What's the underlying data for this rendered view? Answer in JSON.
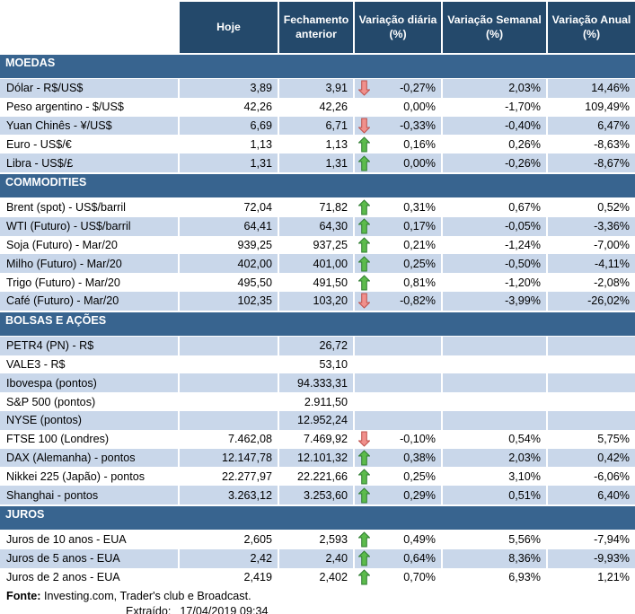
{
  "table": {
    "column_headers": [
      "",
      "Hoje",
      "Fechamento anterior",
      "Variação diária (%)",
      "Variação Semanal (%)",
      "Variação Anual (%)"
    ],
    "sections": [
      {
        "title": "MOEDAS",
        "rows": [
          {
            "label": "Dólar - R$/US$",
            "hoje": "3,89",
            "fechamento": "3,91",
            "arrow": "down",
            "diaria": "-0,27%",
            "semanal": "2,03%",
            "anual": "14,46%"
          },
          {
            "label": "Peso argentino - $/US$",
            "hoje": "42,26",
            "fechamento": "42,26",
            "arrow": null,
            "diaria": "0,00%",
            "semanal": "-1,70%",
            "anual": "109,49%"
          },
          {
            "label": "Yuan Chinês - ¥/US$",
            "hoje": "6,69",
            "fechamento": "6,71",
            "arrow": "down",
            "diaria": "-0,33%",
            "semanal": "-0,40%",
            "anual": "6,47%"
          },
          {
            "label": "Euro - US$/€",
            "hoje": "1,13",
            "fechamento": "1,13",
            "arrow": "up",
            "diaria": "0,16%",
            "semanal": "0,26%",
            "anual": "-8,63%"
          },
          {
            "label": "Libra - US$/£",
            "hoje": "1,31",
            "fechamento": "1,31",
            "arrow": "up",
            "diaria": "0,00%",
            "semanal": "-0,26%",
            "anual": "-8,67%"
          }
        ]
      },
      {
        "title": "COMMODITIES",
        "rows": [
          {
            "label": "Brent (spot) - US$/barril",
            "hoje": "72,04",
            "fechamento": "71,82",
            "arrow": "up",
            "diaria": "0,31%",
            "semanal": "0,67%",
            "anual": "0,52%"
          },
          {
            "label": "WTI (Futuro) - US$/barril",
            "hoje": "64,41",
            "fechamento": "64,30",
            "arrow": "up",
            "diaria": "0,17%",
            "semanal": "-0,05%",
            "anual": "-3,36%"
          },
          {
            "label": "Soja (Futuro) - Mar/20",
            "hoje": "939,25",
            "fechamento": "937,25",
            "arrow": "up",
            "diaria": "0,21%",
            "semanal": "-1,24%",
            "anual": "-7,00%"
          },
          {
            "label": "Milho (Futuro) - Mar/20",
            "hoje": "402,00",
            "fechamento": "401,00",
            "arrow": "up",
            "diaria": "0,25%",
            "semanal": "-0,50%",
            "anual": "-4,11%"
          },
          {
            "label": "Trigo (Futuro) - Mar/20",
            "hoje": "495,50",
            "fechamento": "491,50",
            "arrow": "up",
            "diaria": "0,81%",
            "semanal": "-1,20%",
            "anual": "-2,08%"
          },
          {
            "label": "Café (Futuro) - Mar/20",
            "hoje": "102,35",
            "fechamento": "103,20",
            "arrow": "down",
            "diaria": "-0,82%",
            "semanal": "-3,99%",
            "anual": "-26,02%"
          }
        ]
      },
      {
        "title": "BOLSAS E AÇÕES",
        "rows": [
          {
            "label": "PETR4 (PN) - R$",
            "hoje": "",
            "fechamento": "26,72",
            "arrow": null,
            "diaria": "",
            "semanal": "",
            "anual": ""
          },
          {
            "label": "VALE3 - R$",
            "hoje": "",
            "fechamento": "53,10",
            "arrow": null,
            "diaria": "",
            "semanal": "",
            "anual": ""
          },
          {
            "label": "Ibovespa (pontos)",
            "hoje": "",
            "fechamento": "94.333,31",
            "arrow": null,
            "diaria": "",
            "semanal": "",
            "anual": ""
          },
          {
            "label": "S&P 500 (pontos)",
            "hoje": "",
            "fechamento": "2.911,50",
            "arrow": null,
            "diaria": "",
            "semanal": "",
            "anual": ""
          },
          {
            "label": "NYSE (pontos)",
            "hoje": "",
            "fechamento": "12.952,24",
            "arrow": null,
            "diaria": "",
            "semanal": "",
            "anual": ""
          },
          {
            "label": "FTSE 100 (Londres)",
            "hoje": "7.462,08",
            "fechamento": "7.469,92",
            "arrow": "down",
            "diaria": "-0,10%",
            "semanal": "0,54%",
            "anual": "5,75%"
          },
          {
            "label": "DAX (Alemanha) - pontos",
            "hoje": "12.147,78",
            "fechamento": "12.101,32",
            "arrow": "up",
            "diaria": "0,38%",
            "semanal": "2,03%",
            "anual": "0,42%"
          },
          {
            "label": "Nikkei 225 (Japão) - pontos",
            "hoje": "22.277,97",
            "fechamento": "22.221,66",
            "arrow": "up",
            "diaria": "0,25%",
            "semanal": "3,10%",
            "anual": "-6,06%"
          },
          {
            "label": "Shanghai - pontos",
            "hoje": "3.263,12",
            "fechamento": "3.253,60",
            "arrow": "up",
            "diaria": "0,29%",
            "semanal": "0,51%",
            "anual": "6,40%"
          }
        ]
      },
      {
        "title": "JUROS",
        "rows": [
          {
            "label": "Juros de 10 anos - EUA",
            "hoje": "2,605",
            "fechamento": "2,593",
            "arrow": "up",
            "diaria": "0,49%",
            "semanal": "5,56%",
            "anual": "-7,94%"
          },
          {
            "label": "Juros de 5 anos - EUA",
            "hoje": "2,42",
            "fechamento": "2,40",
            "arrow": "up",
            "diaria": "0,64%",
            "semanal": "8,36%",
            "anual": "-9,93%"
          },
          {
            "label": "Juros de 2 anos - EUA",
            "hoje": "2,419",
            "fechamento": "2,402",
            "arrow": "up",
            "diaria": "0,70%",
            "semanal": "6,93%",
            "anual": "1,21%"
          }
        ]
      }
    ]
  },
  "footer": {
    "fonte_label": "Fonte:",
    "fonte_text": " Investing.com, Trader's club e Broadcast.",
    "extraido_label": "Extraído:",
    "extraido_value": "17/04/2019 09:34"
  },
  "colors": {
    "header_bg": "#24496B",
    "section_bg": "#38648F",
    "stripe_bg": "#C9D7EA",
    "up_fill": "#5CBB4C",
    "up_stroke": "#2F7D32",
    "down_fill": "#F0908C",
    "down_stroke": "#BE504B",
    "text": "#000000"
  }
}
